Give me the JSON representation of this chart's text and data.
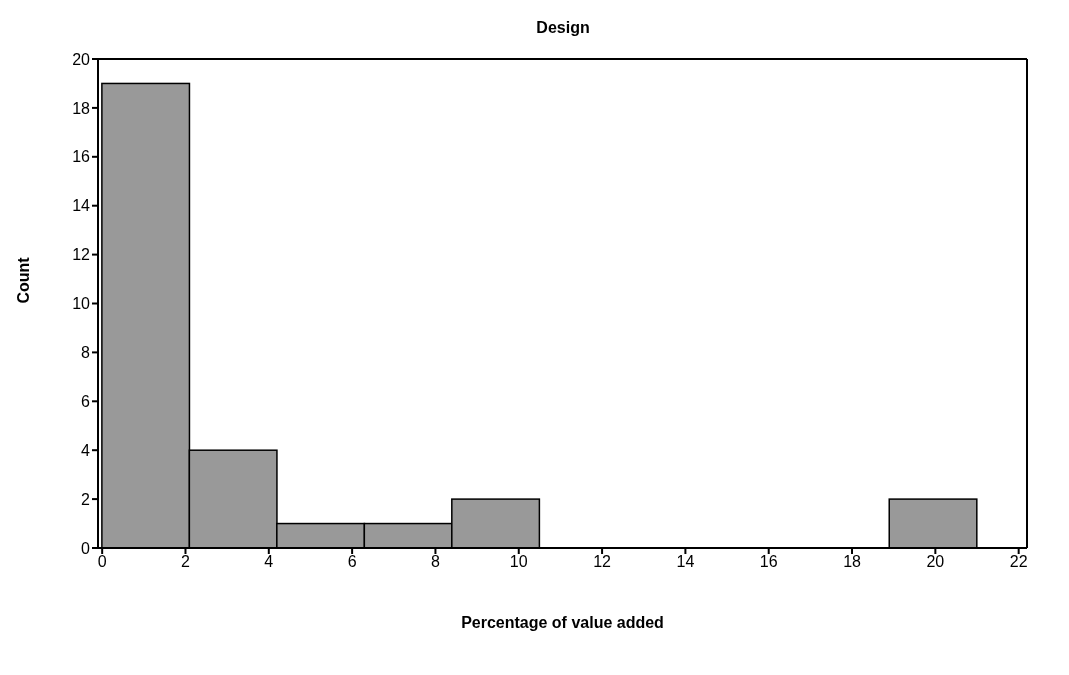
{
  "chart_data": {
    "type": "histogram",
    "title": "Design",
    "xlabel": "Percentage of value added",
    "ylabel": "Count",
    "bins": [
      0,
      2.1,
      4.2,
      6.3,
      8.4,
      10.5,
      12.6,
      14.7,
      16.8,
      18.9,
      21
    ],
    "values": [
      19,
      4,
      1,
      1,
      2,
      0,
      0,
      0,
      0,
      2
    ],
    "color": "#999999",
    "xlim": [
      -0.1,
      22.2
    ],
    "xticks": [
      0,
      2,
      4,
      6,
      8,
      10,
      12,
      14,
      16,
      18,
      20,
      22
    ],
    "ylim": [
      0,
      20
    ],
    "yticks": [
      0,
      2,
      4,
      6,
      8,
      10,
      12,
      14,
      16,
      18,
      20
    ]
  }
}
